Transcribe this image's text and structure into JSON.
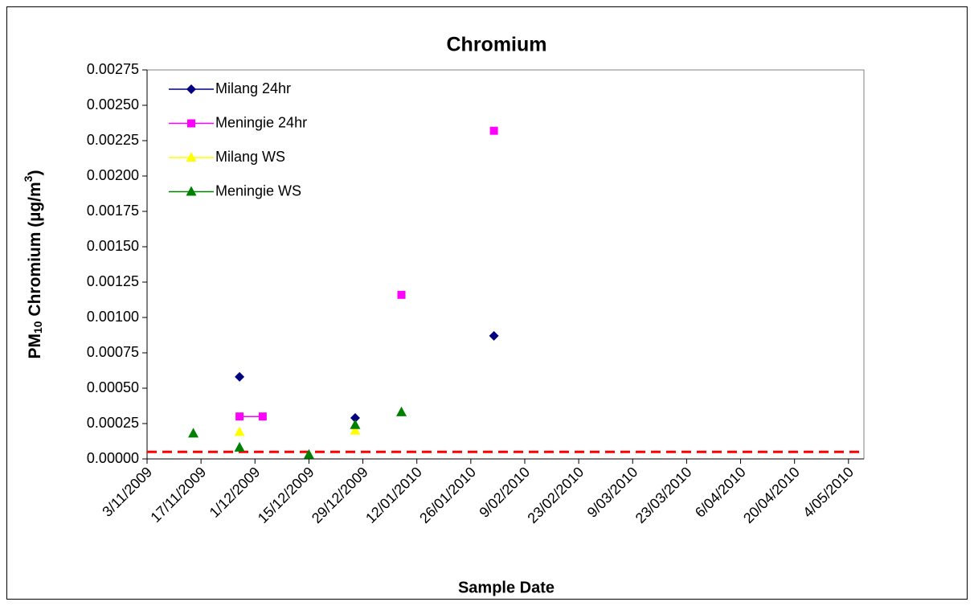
{
  "chart_data": {
    "type": "scatter",
    "title": "Chromium",
    "x_label": "Sample Date",
    "y_label": [
      "PM",
      "10",
      " Chromium (µg/m",
      "3",
      ")"
    ],
    "x": [
      "2009-11-15",
      "2009-11-27",
      "2009-12-03",
      "2009-12-15",
      "2009-12-27",
      "2010-01-08",
      "2010-02-01"
    ],
    "series": [
      {
        "name": "Milang 24hr",
        "color": "#000080",
        "marker": "diamond",
        "values": [
          null,
          0.00058,
          null,
          null,
          0.00029,
          null,
          0.00087
        ]
      },
      {
        "name": "Meningie 24hr",
        "color": "#ff00ff",
        "marker": "square",
        "values": [
          null,
          0.0003,
          0.0003,
          null,
          null,
          0.00116,
          0.00232
        ]
      },
      {
        "name": "Milang WS",
        "color": "#ffff00",
        "marker": "triangle",
        "values": [
          null,
          0.00019,
          null,
          null,
          0.0002,
          null,
          null
        ]
      },
      {
        "name": "Meningie WS",
        "color": "#008000",
        "marker": "triangle",
        "values": [
          0.00018,
          8e-05,
          null,
          3e-05,
          0.00024,
          0.00033,
          null
        ]
      }
    ],
    "xlim": [
      "2009-11-03",
      "2010-05-08"
    ],
    "xticks": [
      {
        "value": "2009-11-03",
        "label": "3/11/2009"
      },
      {
        "value": "2009-11-17",
        "label": "17/11/2009"
      },
      {
        "value": "2009-12-01",
        "label": "1/12/2009"
      },
      {
        "value": "2009-12-15",
        "label": "15/12/2009"
      },
      {
        "value": "2009-12-29",
        "label": "29/12/2009"
      },
      {
        "value": "2010-01-12",
        "label": "12/01/2010"
      },
      {
        "value": "2010-01-26",
        "label": "26/01/2010"
      },
      {
        "value": "2010-02-09",
        "label": "9/02/2010"
      },
      {
        "value": "2010-02-23",
        "label": "23/02/2010"
      },
      {
        "value": "2010-03-09",
        "label": "9/03/2010"
      },
      {
        "value": "2010-03-23",
        "label": "23/03/2010"
      },
      {
        "value": "2010-04-06",
        "label": "6/04/2010"
      },
      {
        "value": "2010-04-20",
        "label": "20/04/2010"
      },
      {
        "value": "2010-05-04",
        "label": "4/05/2010"
      }
    ],
    "ylim": [
      0,
      0.00275
    ],
    "yticks": [
      {
        "value": 0,
        "label": "0.00000"
      },
      {
        "value": 0.00025,
        "label": "0.00025"
      },
      {
        "value": 0.0005,
        "label": "0.00050"
      },
      {
        "value": 0.00075,
        "label": "0.00075"
      },
      {
        "value": 0.001,
        "label": "0.00100"
      },
      {
        "value": 0.00125,
        "label": "0.00125"
      },
      {
        "value": 0.0015,
        "label": "0.00150"
      },
      {
        "value": 0.00175,
        "label": "0.00175"
      },
      {
        "value": 0.002,
        "label": "0.00200"
      },
      {
        "value": 0.00225,
        "label": "0.00225"
      },
      {
        "value": 0.0025,
        "label": "0.00250"
      },
      {
        "value": 0.00275,
        "label": "0.00275"
      }
    ],
    "reference_line": {
      "value": 5e-05,
      "color": "#ff0000"
    },
    "legend_position": "upper left"
  }
}
